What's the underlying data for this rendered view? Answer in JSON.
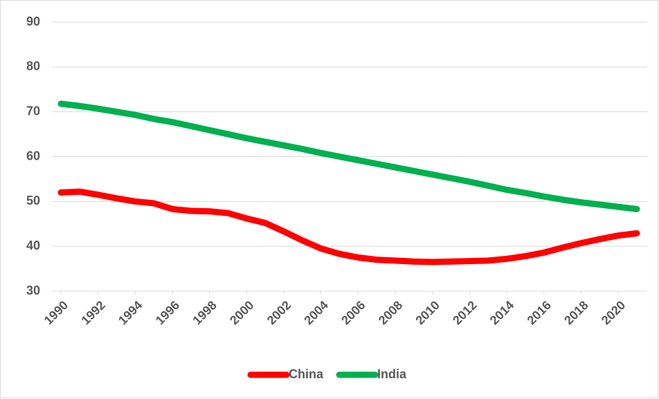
{
  "chart_data": {
    "type": "line",
    "x": [
      1990,
      1991,
      1992,
      1993,
      1994,
      1995,
      1996,
      1997,
      1998,
      1999,
      2000,
      2001,
      2002,
      2003,
      2004,
      2005,
      2006,
      2007,
      2008,
      2009,
      2010,
      2011,
      2012,
      2013,
      2014,
      2015,
      2016,
      2017,
      2018,
      2019,
      2020,
      2021
    ],
    "series": [
      {
        "name": "China",
        "color": "#ff0000",
        "values": [
          52,
          52.2,
          51.5,
          50.7,
          50,
          49.6,
          48.3,
          47.9,
          47.8,
          47.4,
          46.2,
          45.2,
          43.3,
          41.3,
          39.5,
          38.3,
          37.5,
          37,
          36.8,
          36.6,
          36.5,
          36.6,
          36.7,
          36.8,
          37.2,
          37.8,
          38.6,
          39.7,
          40.7,
          41.6,
          42.4,
          42.9
        ]
      },
      {
        "name": "India",
        "color": "#00b050",
        "values": [
          71.8,
          71.3,
          70.7,
          70,
          69.3,
          68.4,
          67.7,
          66.8,
          65.9,
          65,
          64.1,
          63.3,
          62.5,
          61.7,
          60.8,
          60,
          59.2,
          58.4,
          57.6,
          56.8,
          56,
          55.2,
          54.4,
          53.5,
          52.6,
          51.9,
          51.1,
          50.4,
          49.8,
          49.3,
          48.8,
          48.3
        ]
      }
    ],
    "xlim": [
      1990,
      2021
    ],
    "xticks": [
      1990,
      1992,
      1994,
      1996,
      1998,
      2000,
      2002,
      2004,
      2006,
      2008,
      2010,
      2012,
      2014,
      2016,
      2018,
      2020
    ],
    "ylim": [
      30,
      90
    ],
    "yticks": [
      30,
      40,
      50,
      60,
      70,
      80,
      90
    ],
    "grid": true,
    "legend": "bottom"
  }
}
